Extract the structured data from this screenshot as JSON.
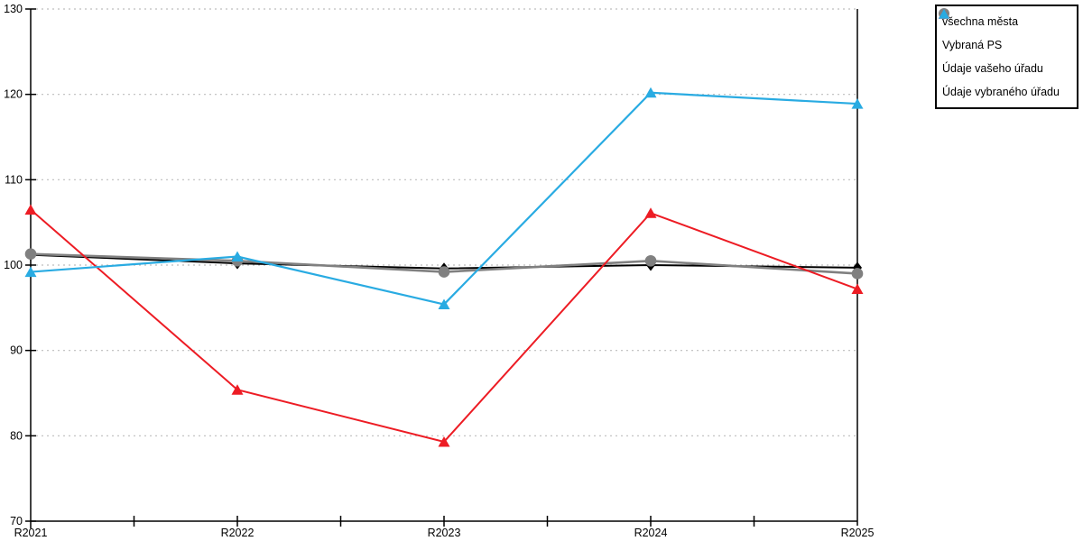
{
  "chart_data": {
    "type": "line",
    "title": "",
    "xlabel": "",
    "ylabel": "",
    "categories": [
      "R2021",
      "R2022",
      "R2023",
      "R2024",
      "R2025"
    ],
    "series": [
      {
        "id": "vsechna-mesta",
        "name": "všechna města",
        "marker": "diamond",
        "color": "#000000",
        "values": [
          101.2,
          100.2,
          99.6,
          100.0,
          99.7
        ]
      },
      {
        "id": "vybrana-ps",
        "name": "Vybraná PS",
        "marker": "circle",
        "color": "#808080",
        "values": [
          101.3,
          100.5,
          99.2,
          100.5,
          99.0
        ]
      },
      {
        "id": "udaje-vaseho-uradu",
        "name": "Údaje vašeho úřadu",
        "marker": "triangle",
        "color": "#ed1c24",
        "values": [
          106.5,
          85.4,
          79.3,
          106.1,
          97.2
        ]
      },
      {
        "id": "udaje-vybraneho-uradu",
        "name": "Údaje vybraného úřadu",
        "marker": "triangle",
        "color": "#29abe2",
        "values": [
          99.2,
          101.0,
          95.4,
          120.2,
          118.9
        ]
      }
    ],
    "ylim": [
      70,
      130
    ],
    "ytick_step": 10,
    "yticks": [
      70,
      80,
      90,
      100,
      110,
      120,
      130
    ],
    "grid": "horizontal-dashed",
    "legend_position": "top-right"
  },
  "colors": {
    "grid": "#bdbdbd",
    "axis": "#000000",
    "background": "#ffffff",
    "tick_label": "#000000"
  }
}
